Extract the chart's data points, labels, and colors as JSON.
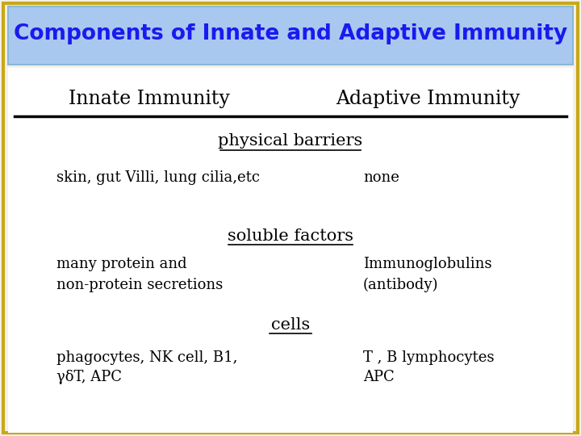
{
  "title": "Components of Innate and Adaptive Immunity",
  "title_color": "#1a1aee",
  "title_bg_color": "#a8c8f0",
  "title_fontsize": 19,
  "col_left_label": "Innate Immunity",
  "col_right_label": "Adaptive Immunity",
  "col_header_fontsize": 17,
  "col_header_color": "#000000",
  "section_headers": [
    "physical barriers",
    "soluble factors",
    "cells"
  ],
  "section_header_fontsize": 15,
  "section_header_color": "#000000",
  "rows": [
    {
      "section": "physical barriers",
      "left": "skin, gut Villi, lung cilia,etc",
      "right": "none"
    },
    {
      "section": "soluble factors",
      "left": "many protein and\nnon-protein secretions",
      "right": "Immunoglobulins\n(antibody)"
    },
    {
      "section": "cells",
      "left": "phagocytes, NK cell, B1,\nγδT, APC",
      "right": "T , B lymphocytes\nAPC"
    }
  ],
  "content_fontsize": 13,
  "content_color": "#000000",
  "bg_color": "#f5f0e8",
  "inner_bg_color": "#ffffff",
  "border_color": "#c8a818",
  "fig_width": 7.2,
  "fig_height": 5.4
}
